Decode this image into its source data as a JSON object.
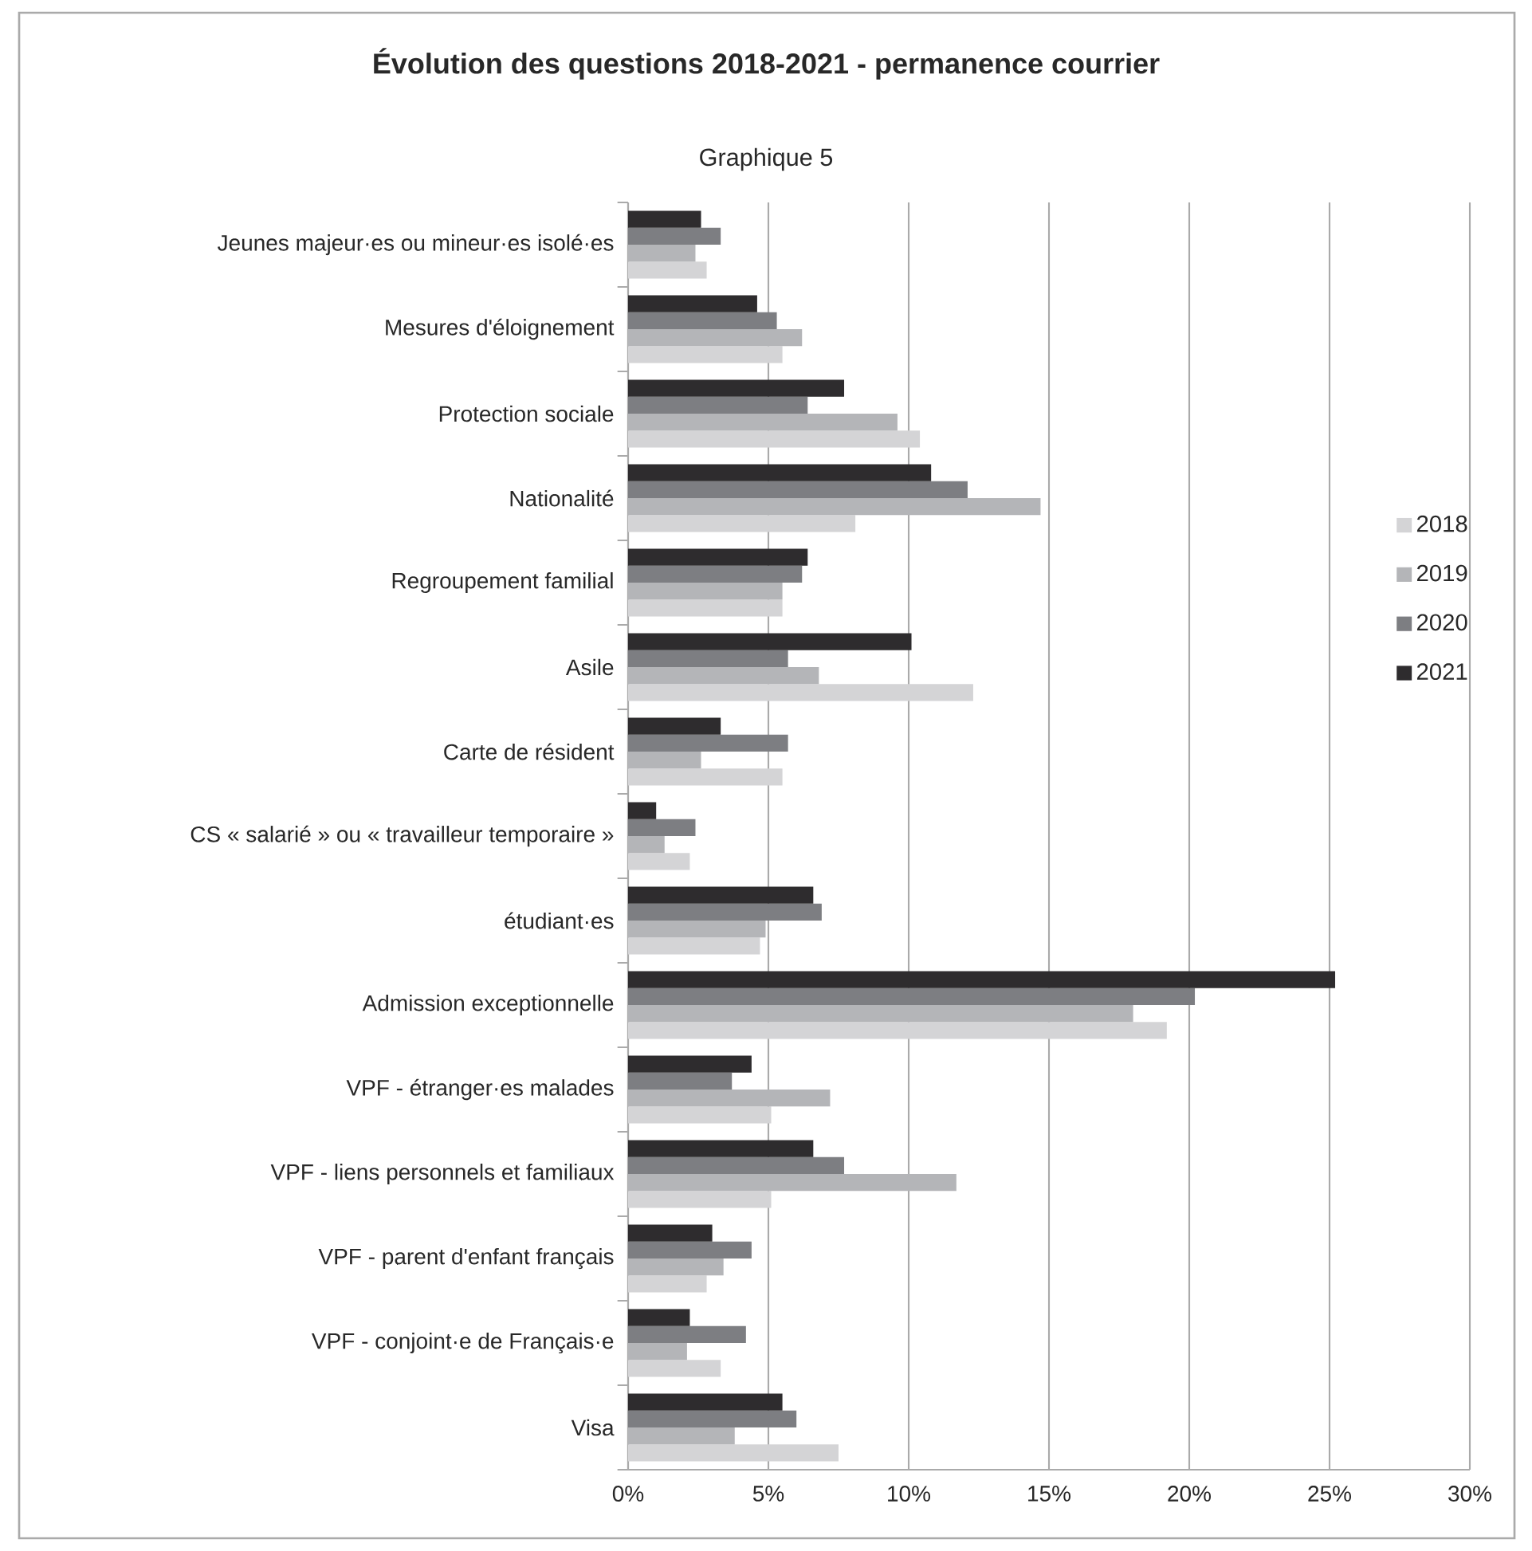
{
  "chart_data": {
    "type": "bar",
    "orientation": "horizontal",
    "title": "Évolution des questions 2018-2021 - permanence courrier",
    "subtitle": "Graphique 5",
    "categories": [
      "Jeunes majeur·es ou mineur·es isolé·es",
      "Mesures d'éloignement",
      "Protection sociale",
      "Nationalité",
      "Regroupement familial",
      "Asile",
      "Carte de résident",
      "CS « salarié » ou « travailleur temporaire »",
      "étudiant·es",
      "Admission exceptionnelle",
      "VPF - étranger·es malades",
      "VPF - liens personnels et familiaux",
      "VPF - parent d'enfant français",
      "VPF - conjoint·e de Français·e",
      "Visa"
    ],
    "series": [
      {
        "name": "2018",
        "color": "#d4d4d6",
        "values": [
          2.8,
          5.5,
          10.4,
          8.1,
          5.5,
          12.3,
          5.5,
          2.2,
          4.7,
          19.2,
          5.1,
          5.1,
          2.8,
          3.3,
          7.5
        ]
      },
      {
        "name": "2019",
        "color": "#b4b5b8",
        "values": [
          2.4,
          6.2,
          9.6,
          14.7,
          5.5,
          6.8,
          2.6,
          1.3,
          4.9,
          18.0,
          7.2,
          11.7,
          3.4,
          2.1,
          3.8
        ]
      },
      {
        "name": "2020",
        "color": "#7d7e82",
        "values": [
          3.3,
          5.3,
          6.4,
          12.1,
          6.2,
          5.7,
          5.7,
          2.4,
          6.9,
          20.2,
          3.7,
          7.7,
          4.4,
          4.2,
          6.0
        ]
      },
      {
        "name": "2021",
        "color": "#2e2c2e",
        "values": [
          2.6,
          4.6,
          7.7,
          10.8,
          6.4,
          10.1,
          3.3,
          1.0,
          6.6,
          25.2,
          4.4,
          6.6,
          3.0,
          2.2,
          5.5
        ]
      }
    ],
    "xlim": [
      0,
      30
    ],
    "xticks": [
      {
        "value": 0,
        "label": "0%"
      },
      {
        "value": 5,
        "label": "5%"
      },
      {
        "value": 10,
        "label": "10%"
      },
      {
        "value": 15,
        "label": "15%"
      },
      {
        "value": 20,
        "label": "20%"
      },
      {
        "value": 25,
        "label": "25%"
      },
      {
        "value": 30,
        "label": "30%"
      }
    ],
    "grid": "x",
    "legend": "right"
  }
}
